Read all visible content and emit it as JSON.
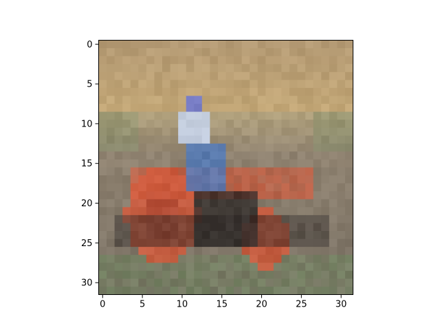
{
  "image": {
    "grid_size": 32,
    "description_icon": "motorbike-rider-photo",
    "dominant_colors": {
      "sky_grass": "#b49a74",
      "field": "#8f8270",
      "bike_orange": "#d0583a",
      "rider_shirt": "#c8d6ef",
      "rider_jeans": "#4d79be",
      "helmet": "#6a73c8",
      "shadow": "#2a2524",
      "ground_green": "#6f8a60"
    }
  },
  "axes": {
    "x_ticks": [
      "0",
      "5",
      "10",
      "15",
      "20",
      "25",
      "30"
    ],
    "y_ticks": [
      "0",
      "5",
      "10",
      "15",
      "20",
      "25",
      "30"
    ]
  }
}
